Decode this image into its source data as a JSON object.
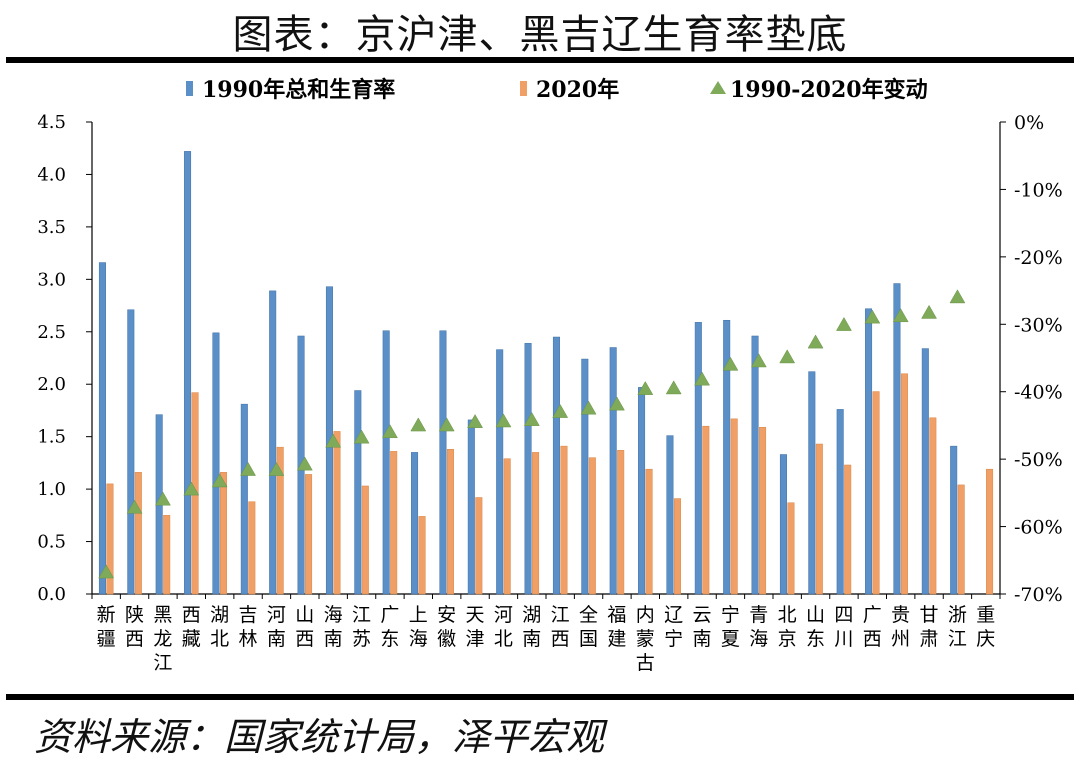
{
  "page": {
    "title": "图表：京沪津、黑吉辽生育率垫底",
    "source": "资料来源：国家统计局，泽平宏观"
  },
  "colors": {
    "series_1990": "#5b8fc7",
    "series_2020": "#f0a066",
    "series_change": "#7faa5a"
  },
  "chart_data": {
    "type": "bar",
    "categories": [
      "新疆",
      "陕西",
      "黑龙江",
      "西藏",
      "湖北",
      "吉林",
      "河南",
      "山西",
      "海南",
      "江苏",
      "广东",
      "上海",
      "安徽",
      "天津",
      "河北",
      "湖南",
      "江西",
      "全国",
      "福建",
      "内蒙古",
      "辽宁",
      "云南",
      "宁夏",
      "青海",
      "北京",
      "山东",
      "四川",
      "广西",
      "贵州",
      "甘肃",
      "浙江",
      "重庆"
    ],
    "series": [
      {
        "name": "1990年总和生育率",
        "type": "bar",
        "axis": "left",
        "values": [
          3.16,
          2.71,
          1.71,
          4.22,
          2.49,
          1.81,
          2.89,
          2.46,
          2.93,
          1.94,
          2.51,
          1.35,
          2.51,
          1.66,
          2.33,
          2.39,
          2.45,
          2.24,
          2.35,
          1.97,
          1.51,
          2.59,
          2.61,
          2.46,
          1.33,
          2.12,
          1.76,
          2.72,
          2.96,
          2.34,
          1.41,
          null
        ]
      },
      {
        "name": "2020年",
        "type": "bar",
        "axis": "left",
        "values": [
          1.05,
          1.16,
          0.75,
          1.92,
          1.16,
          0.88,
          1.4,
          1.14,
          1.55,
          1.03,
          1.36,
          0.74,
          1.38,
          0.92,
          1.29,
          1.35,
          1.41,
          1.3,
          1.37,
          1.19,
          0.91,
          1.6,
          1.67,
          1.59,
          0.87,
          1.43,
          1.23,
          1.93,
          2.1,
          1.68,
          1.04,
          1.19
        ]
      },
      {
        "name": "1990-2020年变动",
        "type": "scatter",
        "axis": "right",
        "marker": "triangle",
        "values": [
          -66.8,
          -57.2,
          -56.0,
          -54.5,
          -53.3,
          -51.6,
          -51.6,
          -50.8,
          -47.4,
          -46.8,
          -46.0,
          -45.0,
          -45.0,
          -44.5,
          -44.4,
          -44.2,
          -43.0,
          -42.5,
          -41.9,
          -39.6,
          -39.5,
          -38.2,
          -36.0,
          -35.5,
          -34.9,
          -32.7,
          -30.1,
          -29.0,
          -28.8,
          -28.3,
          -26.0,
          null
        ]
      }
    ],
    "ylim": [
      0,
      4.5
    ],
    "yticks": [
      "0.0",
      "0.5",
      "1.0",
      "1.5",
      "2.0",
      "2.5",
      "3.0",
      "3.5",
      "4.0",
      "4.5"
    ],
    "y2lim": [
      -70,
      0
    ],
    "y2ticks": [
      "0%",
      "-10%",
      "-20%",
      "-30%",
      "-40%",
      "-50%",
      "-60%",
      "-70%"
    ],
    "legend_position": "top",
    "grid": false
  }
}
